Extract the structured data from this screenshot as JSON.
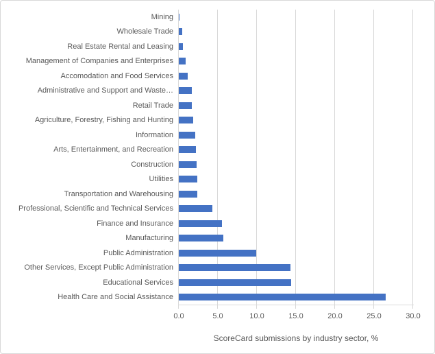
{
  "figure": {
    "background": "#ffffff",
    "border_color": "#d8d8d8"
  },
  "chart_data": {
    "type": "bar",
    "orientation": "horizontal",
    "title": "",
    "xlabel": "ScoreCard submissions by industry sector, %",
    "ylabel": "",
    "xlim": [
      0,
      30
    ],
    "grid": "vertical",
    "legend": "none",
    "bar_color": "#4472c4",
    "axis_color": "#d9d9d9",
    "text_color": "#595959",
    "x_ticks": [
      {
        "label": "0.0",
        "value": 0
      },
      {
        "label": "5.0",
        "value": 5
      },
      {
        "label": "10.0",
        "value": 10
      },
      {
        "label": "15.0",
        "value": 15
      },
      {
        "label": "20.0",
        "value": 20
      },
      {
        "label": "25.0",
        "value": 25
      },
      {
        "label": "30.0",
        "value": 30
      }
    ],
    "categories": [
      "Mining",
      "Wholesale Trade",
      "Real Estate Rental and Leasing",
      "Management of Companies and Enterprises",
      "Accomodation and Food Services",
      "Administrative and Support and Waste…",
      "Retail Trade",
      "Agriculture, Forestry, Fishing and Hunting",
      "Information",
      "Arts, Entertainment, and Recreation",
      "Construction",
      "Utilities",
      "Transportation and Warehousing",
      "Professional, Scientific and Technical Services",
      "Finance and Insurance",
      "Manufacturing",
      "Public Administration",
      "Other Services, Except Public Administration",
      "Educational Services",
      "Health Care and Social Assistance"
    ],
    "values": [
      0.1,
      0.4,
      0.5,
      0.9,
      1.1,
      1.7,
      1.7,
      1.8,
      2.1,
      2.2,
      2.3,
      2.4,
      2.4,
      4.3,
      5.5,
      5.7,
      9.9,
      14.3,
      14.4,
      26.5
    ]
  }
}
